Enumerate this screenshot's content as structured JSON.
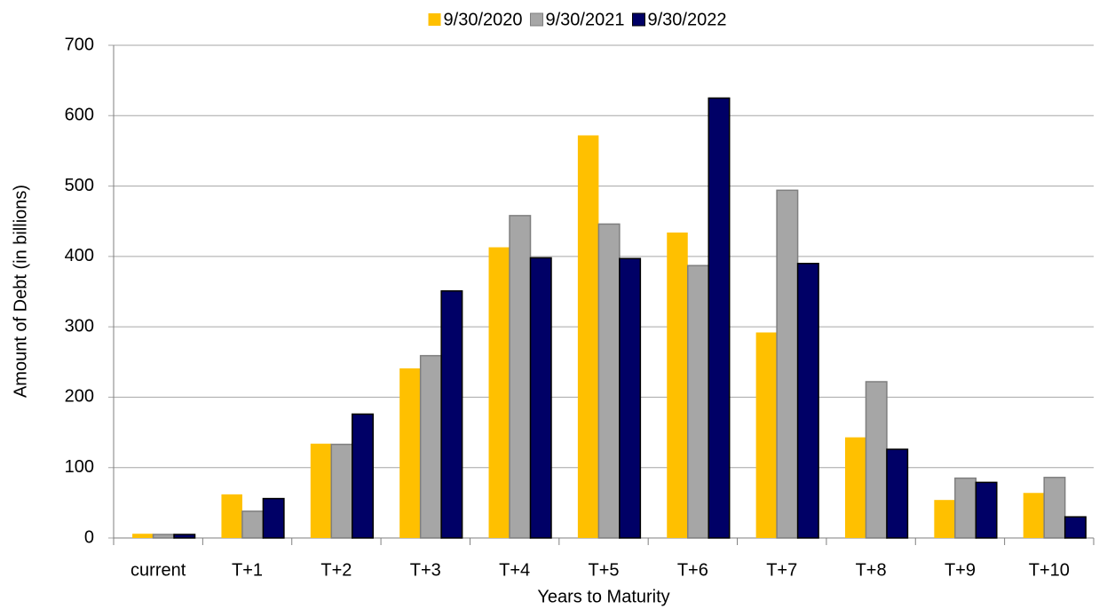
{
  "chart_data": {
    "type": "bar",
    "xlabel": "Years to Maturity",
    "ylabel": "Amount of Debt (in billions)",
    "categories": [
      "current",
      "T+1",
      "T+2",
      "T+3",
      "T+4",
      "T+5",
      "T+6",
      "T+7",
      "T+8",
      "T+9",
      "T+10"
    ],
    "series": [
      {
        "name": "9/30/2020",
        "color": "#ffc000",
        "values": [
          6,
          62,
          134,
          241,
          413,
          572,
          434,
          292,
          143,
          54,
          64
        ]
      },
      {
        "name": "9/30/2021",
        "color": "#a6a6a6",
        "values": [
          5,
          38,
          133,
          259,
          458,
          446,
          387,
          494,
          222,
          85,
          86
        ]
      },
      {
        "name": "9/30/2022",
        "color": "#000066",
        "values": [
          5,
          56,
          176,
          351,
          398,
          397,
          625,
          390,
          126,
          79,
          30
        ]
      }
    ],
    "ylim": [
      0,
      700
    ],
    "yticks": [
      0,
      100,
      200,
      300,
      400,
      500,
      600,
      700
    ],
    "grid": true,
    "legend": "top"
  }
}
